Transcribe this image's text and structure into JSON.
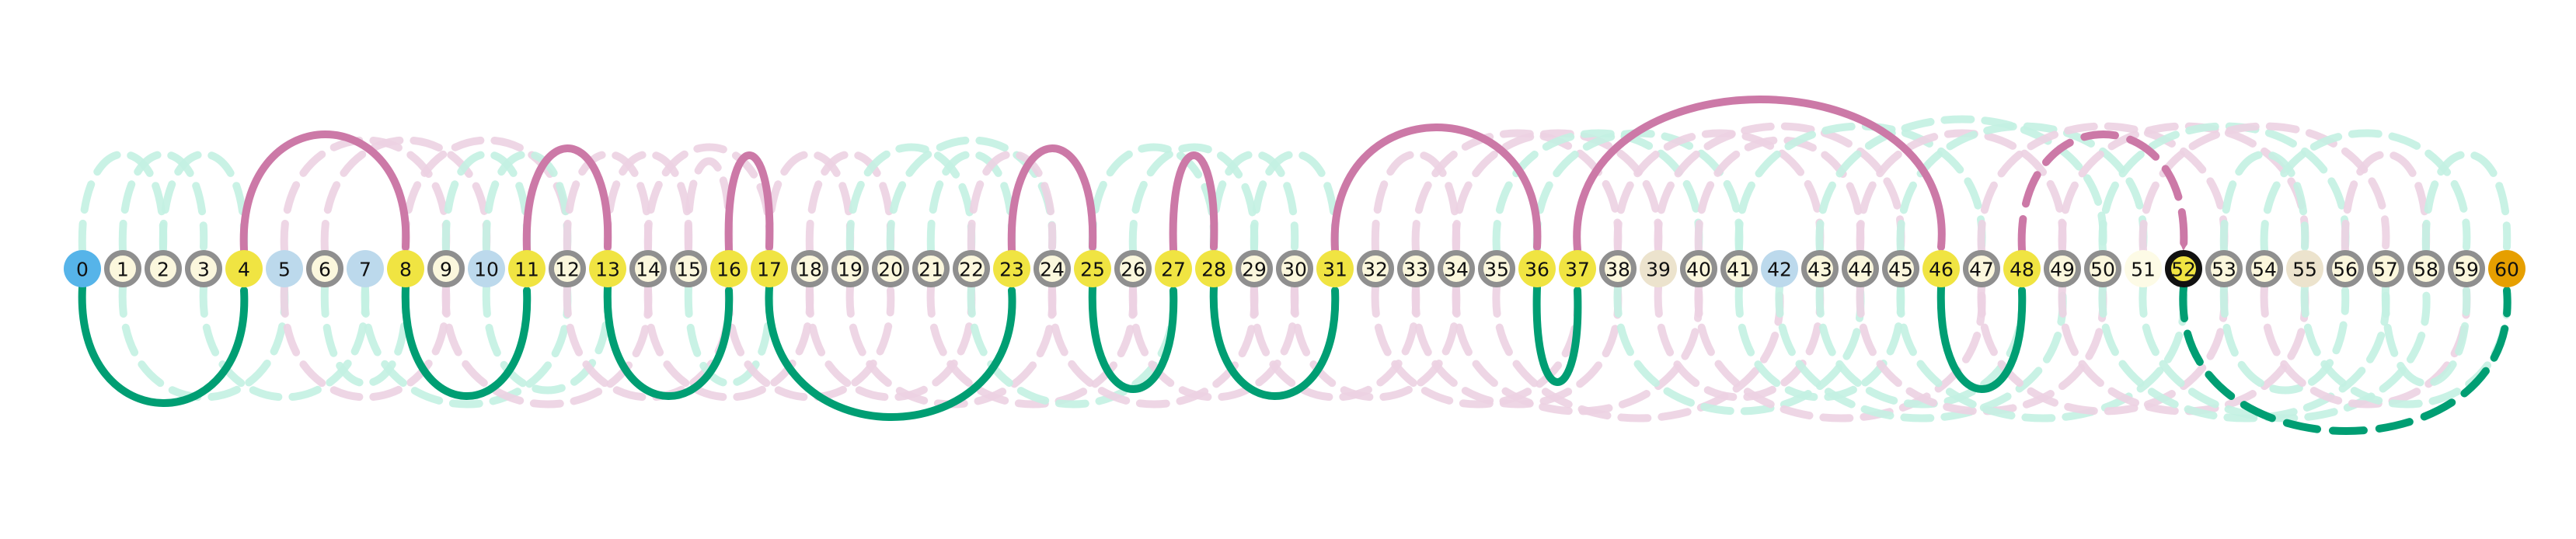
{
  "colors": {
    "background": "#ffffff",
    "plain_fill": "#fbf7dd",
    "plain_stroke": "#8f8f8f",
    "highlight": "#f0e442",
    "start": "#56b4e9",
    "end": "#e69f00",
    "light_blue": "#bcd9ec",
    "beige": "#ece3cd",
    "pale": "#fdfbe6",
    "pink": "#cc79a7",
    "green": "#009e73",
    "ghost_pink": "#ecd2e2",
    "ghost_green": "#c3f1e2"
  },
  "diagram": {
    "nodes": [
      {
        "id": 0,
        "label": "0",
        "kind": "start"
      },
      {
        "id": 1,
        "label": "1",
        "kind": "plain"
      },
      {
        "id": 2,
        "label": "2",
        "kind": "plain"
      },
      {
        "id": 3,
        "label": "3",
        "kind": "plain"
      },
      {
        "id": 4,
        "label": "4",
        "kind": "highlight"
      },
      {
        "id": 5,
        "label": "5",
        "kind": "light_blue"
      },
      {
        "id": 6,
        "label": "6",
        "kind": "plain"
      },
      {
        "id": 7,
        "label": "7",
        "kind": "light_blue"
      },
      {
        "id": 8,
        "label": "8",
        "kind": "highlight"
      },
      {
        "id": 9,
        "label": "9",
        "kind": "plain"
      },
      {
        "id": 10,
        "label": "10",
        "kind": "light_blue"
      },
      {
        "id": 11,
        "label": "11",
        "kind": "highlight"
      },
      {
        "id": 12,
        "label": "12",
        "kind": "plain"
      },
      {
        "id": 13,
        "label": "13",
        "kind": "highlight"
      },
      {
        "id": 14,
        "label": "14",
        "kind": "plain"
      },
      {
        "id": 15,
        "label": "15",
        "kind": "plain"
      },
      {
        "id": 16,
        "label": "16",
        "kind": "highlight"
      },
      {
        "id": 17,
        "label": "17",
        "kind": "highlight"
      },
      {
        "id": 18,
        "label": "18",
        "kind": "plain"
      },
      {
        "id": 19,
        "label": "19",
        "kind": "plain"
      },
      {
        "id": 20,
        "label": "20",
        "kind": "plain"
      },
      {
        "id": 21,
        "label": "21",
        "kind": "plain"
      },
      {
        "id": 22,
        "label": "22",
        "kind": "plain"
      },
      {
        "id": 23,
        "label": "23",
        "kind": "highlight"
      },
      {
        "id": 24,
        "label": "24",
        "kind": "plain"
      },
      {
        "id": 25,
        "label": "25",
        "kind": "highlight"
      },
      {
        "id": 26,
        "label": "26",
        "kind": "plain"
      },
      {
        "id": 27,
        "label": "27",
        "kind": "highlight"
      },
      {
        "id": 28,
        "label": "28",
        "kind": "highlight"
      },
      {
        "id": 29,
        "label": "29",
        "kind": "plain"
      },
      {
        "id": 30,
        "label": "30",
        "kind": "plain"
      },
      {
        "id": 31,
        "label": "31",
        "kind": "highlight"
      },
      {
        "id": 32,
        "label": "32",
        "kind": "plain"
      },
      {
        "id": 33,
        "label": "33",
        "kind": "plain"
      },
      {
        "id": 34,
        "label": "34",
        "kind": "plain"
      },
      {
        "id": 35,
        "label": "35",
        "kind": "plain"
      },
      {
        "id": 36,
        "label": "36",
        "kind": "highlight"
      },
      {
        "id": 37,
        "label": "37",
        "kind": "highlight"
      },
      {
        "id": 38,
        "label": "38",
        "kind": "plain"
      },
      {
        "id": 39,
        "label": "39",
        "kind": "beige"
      },
      {
        "id": 40,
        "label": "40",
        "kind": "plain"
      },
      {
        "id": 41,
        "label": "41",
        "kind": "plain"
      },
      {
        "id": 42,
        "label": "42",
        "kind": "light_blue"
      },
      {
        "id": 43,
        "label": "43",
        "kind": "plain"
      },
      {
        "id": 44,
        "label": "44",
        "kind": "plain"
      },
      {
        "id": 45,
        "label": "45",
        "kind": "plain"
      },
      {
        "id": 46,
        "label": "46",
        "kind": "highlight"
      },
      {
        "id": 47,
        "label": "47",
        "kind": "plain"
      },
      {
        "id": 48,
        "label": "48",
        "kind": "highlight"
      },
      {
        "id": 49,
        "label": "49",
        "kind": "plain"
      },
      {
        "id": 50,
        "label": "50",
        "kind": "plain"
      },
      {
        "id": 51,
        "label": "51",
        "kind": "pale"
      },
      {
        "id": 52,
        "label": "52",
        "kind": "current"
      },
      {
        "id": 53,
        "label": "53",
        "kind": "plain"
      },
      {
        "id": 54,
        "label": "54",
        "kind": "plain"
      },
      {
        "id": 55,
        "label": "55",
        "kind": "beige"
      },
      {
        "id": 56,
        "label": "56",
        "kind": "plain"
      },
      {
        "id": 57,
        "label": "57",
        "kind": "plain"
      },
      {
        "id": 58,
        "label": "58",
        "kind": "plain"
      },
      {
        "id": 59,
        "label": "59",
        "kind": "plain"
      },
      {
        "id": 60,
        "label": "60",
        "kind": "end"
      }
    ],
    "path_edges": [
      {
        "from": 4,
        "to": 8,
        "side": "above",
        "color": "pink",
        "style": "solid"
      },
      {
        "from": 11,
        "to": 13,
        "side": "above",
        "color": "pink",
        "style": "solid"
      },
      {
        "from": 16,
        "to": 17,
        "side": "above",
        "color": "pink",
        "style": "solid"
      },
      {
        "from": 23,
        "to": 25,
        "side": "above",
        "color": "pink",
        "style": "solid"
      },
      {
        "from": 27,
        "to": 28,
        "side": "above",
        "color": "pink",
        "style": "solid"
      },
      {
        "from": 31,
        "to": 36,
        "side": "above",
        "color": "pink",
        "style": "solid"
      },
      {
        "from": 37,
        "to": 46,
        "side": "above",
        "color": "pink",
        "style": "solid"
      },
      {
        "from": 48,
        "to": 52,
        "side": "above",
        "color": "pink",
        "style": "dashed"
      },
      {
        "from": 0,
        "to": 4,
        "side": "below",
        "color": "green",
        "style": "solid"
      },
      {
        "from": 8,
        "to": 11,
        "side": "below",
        "color": "green",
        "style": "solid"
      },
      {
        "from": 13,
        "to": 16,
        "side": "below",
        "color": "green",
        "style": "solid"
      },
      {
        "from": 17,
        "to": 23,
        "side": "below",
        "color": "green",
        "style": "solid"
      },
      {
        "from": 25,
        "to": 27,
        "side": "below",
        "color": "green",
        "style": "solid"
      },
      {
        "from": 28,
        "to": 31,
        "side": "below",
        "color": "green",
        "style": "solid"
      },
      {
        "from": 36,
        "to": 37,
        "side": "below",
        "color": "green",
        "style": "solid"
      },
      {
        "from": 46,
        "to": 48,
        "side": "below",
        "color": "green",
        "style": "solid"
      },
      {
        "from": 52,
        "to": 60,
        "side": "below",
        "color": "green",
        "style": "dashed"
      }
    ],
    "ghost_edges": [
      {
        "from": 0,
        "to": 2,
        "side": "above",
        "color": "ghost_green"
      },
      {
        "from": 1,
        "to": 3,
        "side": "above",
        "color": "ghost_green"
      },
      {
        "from": 2,
        "to": 4,
        "side": "above",
        "color": "ghost_green"
      },
      {
        "from": 5,
        "to": 9,
        "side": "above",
        "color": "ghost_pink"
      },
      {
        "from": 6,
        "to": 10,
        "side": "above",
        "color": "ghost_pink"
      },
      {
        "from": 8,
        "to": 12,
        "side": "above",
        "color": "ghost_pink"
      },
      {
        "from": 9,
        "to": 11,
        "side": "above",
        "color": "ghost_green"
      },
      {
        "from": 10,
        "to": 12,
        "side": "above",
        "color": "ghost_green"
      },
      {
        "from": 12,
        "to": 14,
        "side": "above",
        "color": "ghost_pink"
      },
      {
        "from": 13,
        "to": 15,
        "side": "above",
        "color": "ghost_pink"
      },
      {
        "from": 14,
        "to": 17,
        "side": "above",
        "color": "ghost_pink"
      },
      {
        "from": 15,
        "to": 16,
        "side": "above",
        "color": "ghost_pink"
      },
      {
        "from": 17,
        "to": 19,
        "side": "above",
        "color": "ghost_pink"
      },
      {
        "from": 18,
        "to": 20,
        "side": "above",
        "color": "ghost_pink"
      },
      {
        "from": 19,
        "to": 22,
        "side": "above",
        "color": "ghost_green"
      },
      {
        "from": 20,
        "to": 24,
        "side": "above",
        "color": "ghost_green"
      },
      {
        "from": 21,
        "to": 23,
        "side": "above",
        "color": "ghost_green"
      },
      {
        "from": 22,
        "to": 24,
        "side": "above",
        "color": "ghost_pink"
      },
      {
        "from": 25,
        "to": 28,
        "side": "above",
        "color": "ghost_green"
      },
      {
        "from": 26,
        "to": 29,
        "side": "above",
        "color": "ghost_green"
      },
      {
        "from": 28,
        "to": 30,
        "side": "above",
        "color": "ghost_green"
      },
      {
        "from": 29,
        "to": 31,
        "side": "above",
        "color": "ghost_green"
      },
      {
        "from": 32,
        "to": 34,
        "side": "above",
        "color": "ghost_pink"
      },
      {
        "from": 33,
        "to": 38,
        "side": "above",
        "color": "ghost_pink"
      },
      {
        "from": 34,
        "to": 39,
        "side": "above",
        "color": "ghost_pink"
      },
      {
        "from": 35,
        "to": 40,
        "side": "above",
        "color": "ghost_green"
      },
      {
        "from": 36,
        "to": 41,
        "side": "above",
        "color": "ghost_green"
      },
      {
        "from": 38,
        "to": 43,
        "side": "above",
        "color": "ghost_pink"
      },
      {
        "from": 39,
        "to": 45,
        "side": "above",
        "color": "ghost_pink"
      },
      {
        "from": 40,
        "to": 44,
        "side": "above",
        "color": "ghost_pink"
      },
      {
        "from": 41,
        "to": 47,
        "side": "above",
        "color": "ghost_green"
      },
      {
        "from": 43,
        "to": 50,
        "side": "above",
        "color": "ghost_green"
      },
      {
        "from": 44,
        "to": 49,
        "side": "above",
        "color": "ghost_pink"
      },
      {
        "from": 45,
        "to": 51,
        "side": "above",
        "color": "ghost_green"
      },
      {
        "from": 47,
        "to": 53,
        "side": "above",
        "color": "ghost_pink"
      },
      {
        "from": 49,
        "to": 55,
        "side": "above",
        "color": "ghost_pink"
      },
      {
        "from": 50,
        "to": 56,
        "side": "above",
        "color": "ghost_green"
      },
      {
        "from": 51,
        "to": 57,
        "side": "above",
        "color": "ghost_pink"
      },
      {
        "from": 53,
        "to": 55,
        "side": "above",
        "color": "ghost_green"
      },
      {
        "from": 54,
        "to": 59,
        "side": "above",
        "color": "ghost_green"
      },
      {
        "from": 56,
        "to": 58,
        "side": "above",
        "color": "ghost_pink"
      },
      {
        "from": 58,
        "to": 60,
        "side": "above",
        "color": "ghost_green"
      },
      {
        "from": 1,
        "to": 5,
        "side": "below",
        "color": "ghost_green"
      },
      {
        "from": 3,
        "to": 7,
        "side": "below",
        "color": "ghost_green"
      },
      {
        "from": 5,
        "to": 9,
        "side": "below",
        "color": "ghost_pink"
      },
      {
        "from": 6,
        "to": 8,
        "side": "below",
        "color": "ghost_green"
      },
      {
        "from": 7,
        "to": 12,
        "side": "below",
        "color": "ghost_green"
      },
      {
        "from": 9,
        "to": 14,
        "side": "below",
        "color": "ghost_pink"
      },
      {
        "from": 10,
        "to": 13,
        "side": "below",
        "color": "ghost_green"
      },
      {
        "from": 12,
        "to": 16,
        "side": "below",
        "color": "ghost_pink"
      },
      {
        "from": 14,
        "to": 18,
        "side": "below",
        "color": "ghost_pink"
      },
      {
        "from": 15,
        "to": 17,
        "side": "below",
        "color": "ghost_green"
      },
      {
        "from": 16,
        "to": 20,
        "side": "below",
        "color": "ghost_pink"
      },
      {
        "from": 18,
        "to": 22,
        "side": "below",
        "color": "ghost_pink"
      },
      {
        "from": 19,
        "to": 24,
        "side": "below",
        "color": "ghost_pink"
      },
      {
        "from": 21,
        "to": 26,
        "side": "below",
        "color": "ghost_pink"
      },
      {
        "from": 22,
        "to": 27,
        "side": "below",
        "color": "ghost_green"
      },
      {
        "from": 24,
        "to": 29,
        "side": "below",
        "color": "ghost_pink"
      },
      {
        "from": 26,
        "to": 30,
        "side": "below",
        "color": "ghost_pink"
      },
      {
        "from": 29,
        "to": 33,
        "side": "below",
        "color": "ghost_pink"
      },
      {
        "from": 30,
        "to": 34,
        "side": "below",
        "color": "ghost_pink"
      },
      {
        "from": 32,
        "to": 37,
        "side": "below",
        "color": "ghost_pink"
      },
      {
        "from": 33,
        "to": 38,
        "side": "below",
        "color": "ghost_pink"
      },
      {
        "from": 34,
        "to": 40,
        "side": "below",
        "color": "ghost_pink"
      },
      {
        "from": 35,
        "to": 42,
        "side": "below",
        "color": "ghost_pink"
      },
      {
        "from": 38,
        "to": 44,
        "side": "below",
        "color": "ghost_green"
      },
      {
        "from": 39,
        "to": 43,
        "side": "below",
        "color": "ghost_pink"
      },
      {
        "from": 40,
        "to": 47,
        "side": "below",
        "color": "ghost_pink"
      },
      {
        "from": 41,
        "to": 45,
        "side": "below",
        "color": "ghost_green"
      },
      {
        "from": 42,
        "to": 49,
        "side": "below",
        "color": "ghost_green"
      },
      {
        "from": 43,
        "to": 48,
        "side": "below",
        "color": "ghost_green"
      },
      {
        "from": 44,
        "to": 50,
        "side": "below",
        "color": "ghost_pink"
      },
      {
        "from": 45,
        "to": 52,
        "side": "below",
        "color": "ghost_green"
      },
      {
        "from": 47,
        "to": 53,
        "side": "below",
        "color": "ghost_pink"
      },
      {
        "from": 49,
        "to": 55,
        "side": "below",
        "color": "ghost_pink"
      },
      {
        "from": 50,
        "to": 57,
        "side": "below",
        "color": "ghost_green"
      },
      {
        "from": 51,
        "to": 58,
        "side": "below",
        "color": "ghost_green"
      },
      {
        "from": 53,
        "to": 56,
        "side": "below",
        "color": "ghost_green"
      },
      {
        "from": 54,
        "to": 59,
        "side": "below",
        "color": "ghost_pink"
      },
      {
        "from": 55,
        "to": 60,
        "side": "below",
        "color": "ghost_green"
      },
      {
        "from": 57,
        "to": 59,
        "side": "below",
        "color": "ghost_green"
      }
    ]
  }
}
